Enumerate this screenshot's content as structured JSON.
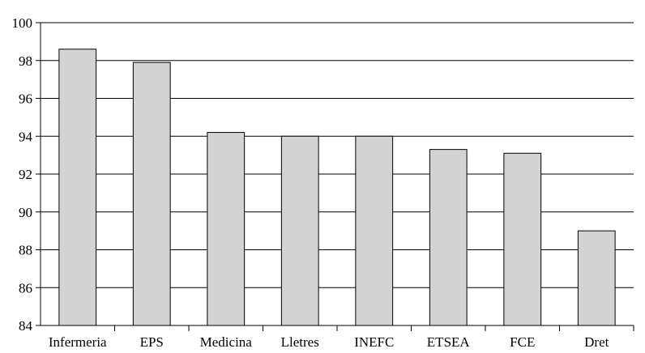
{
  "chart_data": {
    "type": "bar",
    "title": "",
    "xlabel": "",
    "ylabel": "",
    "categories": [
      "Infermeria",
      "EPS",
      "Medicina",
      "Lletres",
      "INEFC",
      "ETSEA",
      "FCE",
      "Dret"
    ],
    "values": [
      98.6,
      97.9,
      94.2,
      94.0,
      94.0,
      93.3,
      93.1,
      89.0
    ],
    "ylim": [
      84,
      100
    ],
    "yticks": [
      84,
      86,
      88,
      90,
      92,
      94,
      96,
      98,
      100
    ],
    "grid": true,
    "legend": "none",
    "colors": {
      "bar_fill": "#d3d3d3",
      "bar_stroke": "#000000",
      "axis": "#000000",
      "grid": "#000000"
    }
  }
}
